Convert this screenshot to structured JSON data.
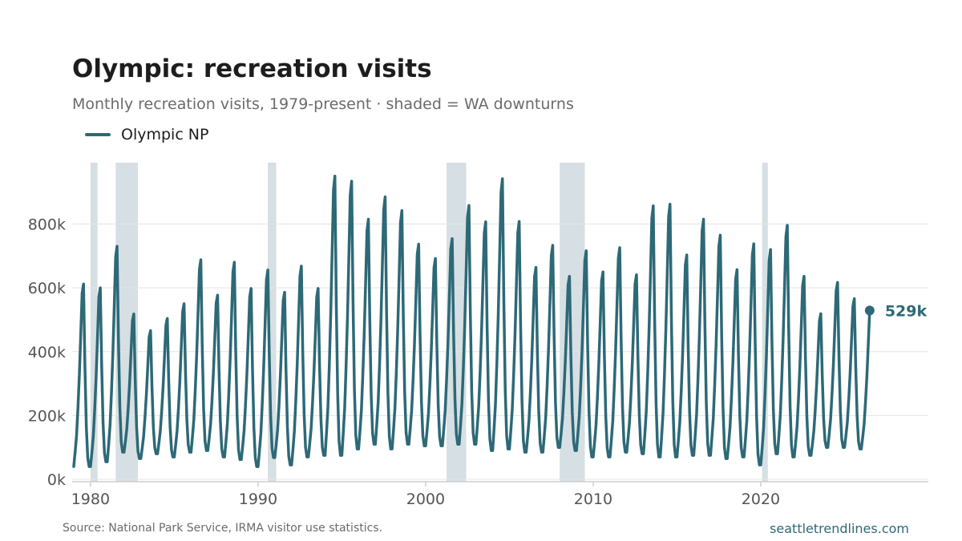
{
  "page": {
    "title": "Olympic: recreation visits",
    "subtitle": "Monthly recreation visits, 1979-present · shaded = WA downturns",
    "source": "Source: National Park Service, IRMA visitor use statistics.",
    "site": "seattletrendlines.com"
  },
  "colors": {
    "line": "#2d6977",
    "shade": "#d6dfe3",
    "grid": "#e4e4e4",
    "axis": "#cfcfcf"
  },
  "chart_data": {
    "type": "line",
    "title": "Olympic: recreation visits",
    "subtitle": "Monthly recreation visits, 1979-present · shaded = WA downturns",
    "xlabel": "",
    "ylabel": "",
    "xlim": [
      1979.0,
      2030.0
    ],
    "ylim": [
      0,
      1000000
    ],
    "x_ticks": [
      1980,
      1990,
      2000,
      2010,
      2020
    ],
    "x_tick_labels": [
      "1980",
      "1990",
      "2000",
      "2010",
      "2020"
    ],
    "y_ticks": [
      0,
      200000,
      400000,
      600000,
      800000
    ],
    "y_tick_labels": [
      "0k",
      "200k",
      "400k",
      "600k",
      "800k"
    ],
    "grid": "horizontal",
    "legend": {
      "position": "top-left",
      "entries": [
        "Olympic NP"
      ]
    },
    "shaded_periods": [
      [
        1980.0,
        1980.42
      ],
      [
        1981.5,
        1982.83
      ],
      [
        1990.58,
        1991.08
      ],
      [
        2001.25,
        2002.42
      ],
      [
        2008.0,
        2009.5
      ],
      [
        2020.08,
        2020.42
      ]
    ],
    "end_label": "529k",
    "series": [
      {
        "name": "Olympic NP",
        "start": 1979.0,
        "step": 0.0833333,
        "peaks": [
          612000,
          600000,
          730000,
          518000,
          466000,
          504000,
          550000,
          688000,
          577000,
          680000,
          598000,
          656000,
          586000,
          668000,
          598000,
          950000,
          934000,
          815000,
          885000,
          842000,
          737000,
          692000,
          754000,
          858000,
          807000,
          942000,
          808000,
          664000,
          733000,
          636000,
          716000,
          650000,
          726000,
          641000,
          857000,
          862000,
          703000,
          815000,
          765000,
          657000,
          738000,
          720000,
          796000,
          636000,
          519000,
          617000,
          566000
        ],
        "troughs": [
          40000,
          40000,
          55000,
          85000,
          65000,
          80000,
          70000,
          85000,
          90000,
          70000,
          62000,
          40000,
          68000,
          45000,
          70000,
          75000,
          75000,
          95000,
          110000,
          95000,
          110000,
          105000,
          105000,
          110000,
          110000,
          90000,
          95000,
          85000,
          85000,
          100000,
          90000,
          70000,
          70000,
          85000,
          80000,
          70000,
          70000,
          75000,
          75000,
          65000,
          70000,
          45000,
          80000,
          70000,
          75000,
          100000,
          100000,
          95000
        ],
        "last_value": 529000
      }
    ]
  }
}
